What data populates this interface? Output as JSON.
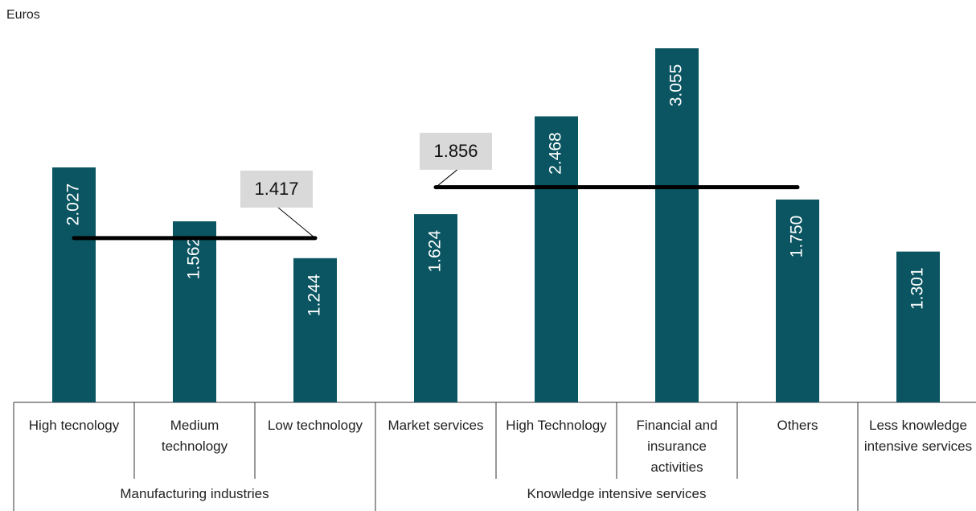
{
  "chart_data": {
    "type": "bar",
    "y_label": "Euros",
    "color": "#0a5561",
    "groups": [
      {
        "name": "Manufacturing industries",
        "categories": [
          "High tecnology",
          "Medium technology",
          "Low technology"
        ],
        "values": [
          2027,
          1562,
          1244
        ],
        "value_labels": [
          "2.027",
          "1.562",
          "1.244"
        ],
        "average": 1417,
        "average_label": "1.417"
      },
      {
        "name": "Knowledge intensive services",
        "categories": [
          "Market services",
          "High Technology",
          "Financial and insurance activities",
          "Others"
        ],
        "values": [
          1624,
          2468,
          3055,
          1750
        ],
        "value_labels": [
          "1.624",
          "2.468",
          "3.055",
          "1.750"
        ],
        "average": 1856,
        "average_label": "1.856"
      },
      {
        "name": null,
        "categories": [
          "Less knowledge intensive services"
        ],
        "values": [
          1301
        ],
        "value_labels": [
          "1.301"
        ]
      }
    ]
  }
}
